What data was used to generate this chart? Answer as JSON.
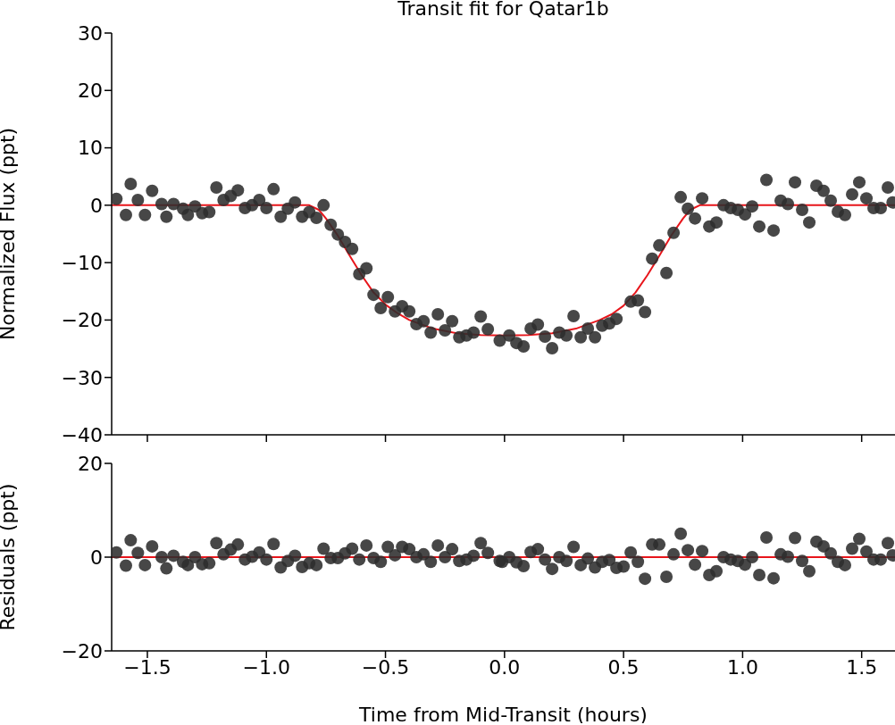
{
  "chart_data": [
    {
      "type": "scatter",
      "title": "Transit fit for Qatar1b",
      "ylabel": "Normalized Flux (ppt)",
      "xlim": [
        -1.65,
        1.64
      ],
      "xticks": [
        {
          "value": -1.5,
          "label": null
        },
        {
          "value": -1.0,
          "label": null
        },
        {
          "value": -0.5,
          "label": null
        },
        {
          "value": 0.0,
          "label": null
        },
        {
          "value": 0.5,
          "label": null
        },
        {
          "value": 1.0,
          "label": null
        },
        {
          "value": 1.5,
          "label": null
        }
      ],
      "ylim": [
        -40,
        30
      ],
      "yticks": [
        {
          "value": -40,
          "label": "−40"
        },
        {
          "value": -30,
          "label": "−30"
        },
        {
          "value": -20,
          "label": "−20"
        },
        {
          "value": -10,
          "label": "−10"
        },
        0,
        10,
        20,
        30
      ],
      "tick_labels": "y",
      "series": [
        {
          "marker": "circle",
          "color": "#2e2e2e",
          "x": [
            -1.63,
            -1.59,
            -1.57,
            -1.54,
            -1.51,
            -1.48,
            -1.44,
            -1.42,
            -1.39,
            -1.35,
            -1.33,
            -1.3,
            -1.27,
            -1.24,
            -1.21,
            -1.18,
            -1.15,
            -1.12,
            -1.09,
            -1.06,
            -1.03,
            -1.0,
            -0.97,
            -0.94,
            -0.91,
            -0.88,
            -0.85,
            -0.82,
            -0.79,
            -0.76,
            -0.73,
            -0.7,
            -0.67,
            -0.64,
            -0.61,
            -0.58,
            -0.55,
            -0.52,
            -0.49,
            -0.46,
            -0.43,
            -0.4,
            -0.37,
            -0.34,
            -0.31,
            -0.28,
            -0.25,
            -0.22,
            -0.19,
            -0.16,
            -0.13,
            -0.1,
            -0.07,
            -0.02,
            0.02,
            0.05,
            0.08,
            0.11,
            0.14,
            0.17,
            0.2,
            0.23,
            0.26,
            0.29,
            0.32,
            0.35,
            0.38,
            0.41,
            0.44,
            0.47,
            0.53,
            0.56,
            0.59,
            0.62,
            0.65,
            0.68,
            0.71,
            0.74,
            0.77,
            0.8,
            0.83,
            0.86,
            0.89,
            0.92,
            0.95,
            0.98,
            1.01,
            1.04,
            1.07,
            1.1,
            1.13,
            1.16,
            1.19,
            1.22,
            1.25,
            1.28,
            1.31,
            1.34,
            1.37,
            1.4,
            1.43,
            1.46,
            1.49,
            1.52,
            1.55,
            1.58,
            1.61,
            1.63
          ],
          "values": [
            1.1,
            -1.7,
            3.7,
            0.9,
            -1.7,
            2.5,
            0.2,
            -2.0,
            0.2,
            -0.6,
            -1.7,
            -0.2,
            -1.4,
            -1.2,
            3.1,
            0.9,
            1.6,
            2.6,
            -0.5,
            0,
            0.9,
            -0.5,
            2.8,
            -2.0,
            -0.6,
            0.5,
            -2.0,
            -1.2,
            -2.2,
            0,
            -3.4,
            -5.1,
            -6.4,
            -7.6,
            -12.0,
            -11.0,
            -15.6,
            -17.9,
            -16.0,
            -18.5,
            -17.6,
            -18.5,
            -20.7,
            -20.2,
            -22.2,
            -19.0,
            -21.8,
            -20.2,
            -23.0,
            -22.7,
            -22.2,
            -19.4,
            -21.6,
            -23.6,
            -22.7,
            -24.0,
            -24.6,
            -21.5,
            -20.8,
            -22.9,
            -24.9,
            -22.2,
            -22.7,
            -19.3,
            -23.0,
            -21.5,
            -23.0,
            -21.0,
            -20.6,
            -19.8,
            -16.8,
            -16.6,
            -18.6,
            -9.3,
            -7.0,
            -11.8,
            -4.8,
            1.4,
            -0.6,
            -2.3,
            1.2,
            -3.7,
            -3.0,
            0,
            -0.5,
            -0.8,
            -1.6,
            -0.2,
            -3.7,
            4.4,
            -4.4,
            0.8,
            0.2,
            4.0,
            -0.8,
            -3.0,
            3.4,
            2.5,
            0.8,
            -1.1,
            -1.7,
            1.9,
            4.0,
            1.2,
            -0.5,
            -0.5,
            3.1,
            0.5
          ]
        },
        {
          "type": "line",
          "color": "#e8151b",
          "x": [
            -1.65,
            -0.82,
            -0.78,
            -0.75,
            -0.7,
            -0.65,
            -0.6,
            -0.55,
            -0.5,
            -0.45,
            -0.4,
            -0.3,
            -0.2,
            -0.1,
            0.0,
            0.1,
            0.2,
            0.3,
            0.4,
            0.45,
            0.5,
            0.55,
            0.6,
            0.65,
            0.7,
            0.75,
            0.78,
            0.82,
            1.64
          ],
          "values": [
            0,
            0,
            -0.8,
            -2.3,
            -5.3,
            -8.8,
            -12.2,
            -15.2,
            -17.3,
            -18.8,
            -20.0,
            -21.5,
            -22.3,
            -22.6,
            -22.7,
            -22.6,
            -22.3,
            -21.5,
            -20.0,
            -19.0,
            -17.5,
            -15.2,
            -12.2,
            -8.8,
            -5.3,
            -2.3,
            -0.8,
            0,
            0
          ]
        }
      ]
    },
    {
      "type": "scatter",
      "xlabel": "Time from Mid-Transit (hours)",
      "ylabel": "Residuals (ppt)",
      "xlim": [
        -1.65,
        1.64
      ],
      "xticks": [
        {
          "value": -1.5,
          "label": "−1.5"
        },
        {
          "value": -1.0,
          "label": "−1.0"
        },
        {
          "value": -0.5,
          "label": "−0.5"
        },
        {
          "value": 0.0,
          "label": "0.0"
        },
        {
          "value": 0.5,
          "label": "0.5"
        },
        {
          "value": 1.0,
          "label": "1.0"
        },
        {
          "value": 1.5,
          "label": "1.5"
        }
      ],
      "ylim": [
        -20,
        20
      ],
      "yticks": [
        {
          "value": -20,
          "label": "−20"
        },
        0,
        20
      ],
      "series": [
        {
          "marker": "circle",
          "color": "#2e2e2e",
          "x": [
            -1.63,
            -1.59,
            -1.57,
            -1.54,
            -1.51,
            -1.48,
            -1.44,
            -1.42,
            -1.39,
            -1.35,
            -1.33,
            -1.3,
            -1.27,
            -1.24,
            -1.21,
            -1.18,
            -1.15,
            -1.12,
            -1.09,
            -1.06,
            -1.03,
            -1.0,
            -0.97,
            -0.94,
            -0.91,
            -0.88,
            -0.85,
            -0.82,
            -0.79,
            -0.76,
            -0.73,
            -0.7,
            -0.67,
            -0.64,
            -0.61,
            -0.58,
            -0.55,
            -0.52,
            -0.49,
            -0.46,
            -0.43,
            -0.4,
            -0.37,
            -0.34,
            -0.31,
            -0.28,
            -0.25,
            -0.22,
            -0.19,
            -0.16,
            -0.13,
            -0.1,
            -0.07,
            -0.02,
            -0.01,
            0.02,
            0.05,
            0.08,
            0.11,
            0.14,
            0.17,
            0.2,
            0.23,
            0.26,
            0.29,
            0.32,
            0.35,
            0.38,
            0.41,
            0.44,
            0.47,
            0.5,
            0.53,
            0.56,
            0.59,
            0.62,
            0.65,
            0.68,
            0.71,
            0.74,
            0.77,
            0.8,
            0.83,
            0.86,
            0.89,
            0.92,
            0.95,
            0.98,
            1.01,
            1.04,
            1.07,
            1.1,
            1.13,
            1.16,
            1.19,
            1.22,
            1.25,
            1.28,
            1.31,
            1.34,
            1.37,
            1.4,
            1.43,
            1.46,
            1.49,
            1.52,
            1.55,
            1.58,
            1.61,
            1.63
          ],
          "values": [
            1.0,
            -1.8,
            3.6,
            0.9,
            -1.7,
            2.3,
            0,
            -2.4,
            0.3,
            -1.0,
            -1.7,
            0,
            -1.5,
            -1.3,
            3.0,
            0.6,
            1.6,
            2.7,
            -0.5,
            0.1,
            1.0,
            -0.5,
            2.8,
            -2.2,
            -0.8,
            0.3,
            -2.1,
            -1.3,
            -1.7,
            1.8,
            -0.2,
            -0.2,
            0.8,
            1.8,
            -0.5,
            2.5,
            -0.2,
            -1.0,
            2.2,
            0.4,
            2.2,
            1.7,
            0,
            0.6,
            -1.0,
            2.5,
            0,
            1.7,
            -0.8,
            -0.5,
            0.3,
            3.0,
            0.9,
            -0.8,
            -1.0,
            0,
            -1.1,
            -1.9,
            1.1,
            1.7,
            -0.5,
            -2.5,
            0,
            -0.8,
            2.2,
            -1.7,
            -0.3,
            -2.2,
            -1.0,
            -0.6,
            -2.3,
            -2.0,
            1.0,
            -1.0,
            -4.6,
            2.7,
            2.7,
            -4.2,
            0.6,
            5.0,
            1.5,
            -1.6,
            1.3,
            -3.8,
            -3.0,
            0,
            -0.5,
            -0.8,
            -1.6,
            0,
            -3.8,
            4.2,
            -4.5,
            0.6,
            0.1,
            4.1,
            -0.8,
            -3.0,
            3.3,
            2.3,
            0.8,
            -1.0,
            -1.7,
            1.8,
            3.9,
            1.2,
            -0.5,
            -0.5,
            3.0,
            0.4
          ]
        },
        {
          "type": "line",
          "color": "#e8151b",
          "x": [
            -1.65,
            1.64
          ],
          "values": [
            0,
            0
          ]
        }
      ]
    }
  ]
}
